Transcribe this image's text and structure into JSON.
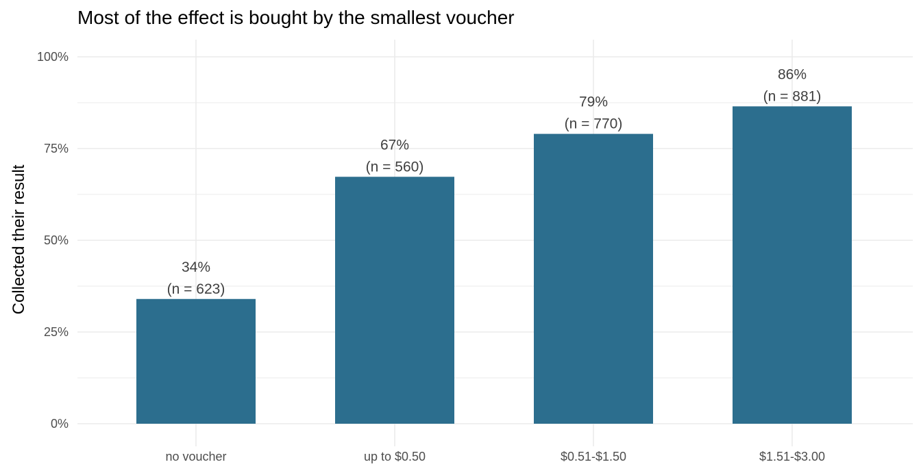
{
  "chart_data": {
    "type": "bar",
    "title": "Most of the effect is bought by the smallest voucher",
    "xlabel": "",
    "ylabel": "Collected their result",
    "categories": [
      "no voucher",
      "up to $0.50",
      "$0.51-$1.50",
      "$1.51-$3.00"
    ],
    "values": [
      0.34,
      0.673,
      0.79,
      0.865
    ],
    "percent_labels": [
      "34%",
      "67%",
      "79%",
      "86%"
    ],
    "n_labels": [
      "(n = 623)",
      "(n = 560)",
      "(n = 770)",
      "(n = 881)"
    ],
    "ylim": [
      0,
      1
    ],
    "y_ticks": [
      0,
      0.25,
      0.5,
      0.75,
      1
    ],
    "y_tick_labels": [
      "0%",
      "25%",
      "50%",
      "75%",
      "100%"
    ],
    "grid": true,
    "legend": "none",
    "bar_color": "#2c6e8e",
    "grid_color": "#ebebeb"
  }
}
